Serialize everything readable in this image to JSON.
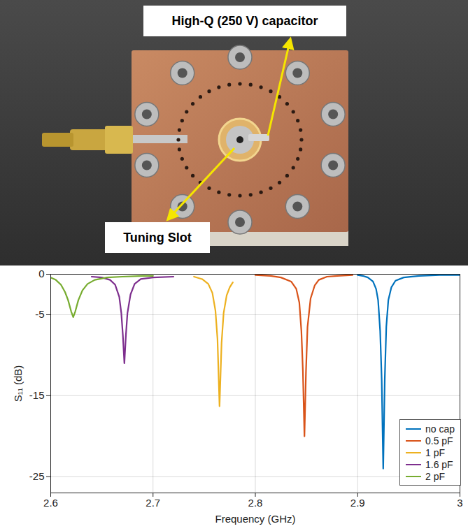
{
  "chart_data": {
    "type": "line",
    "annotations": [
      "High-Q (250 V) capacitor",
      "Tuning Slot"
    ],
    "x_label": "Frequency (GHz)",
    "y_label": "S₁₁ (dB)",
    "xlim": [
      2.6,
      3.0
    ],
    "xticks": [
      2.6,
      2.7,
      2.8,
      2.9,
      3
    ],
    "ylim": [
      -27,
      0
    ],
    "yticks": [
      0,
      -5,
      -15,
      -25
    ],
    "grid": true,
    "legend": "bottom-right",
    "series": [
      {
        "name": "no cap",
        "color": "#0072BD",
        "x": [
          2.9,
          2.905,
          2.91,
          2.915,
          2.918,
          2.92,
          2.922,
          2.9235,
          2.925,
          2.9265,
          2.928,
          2.93,
          2.933,
          2.937,
          2.945,
          2.96,
          2.98,
          3.0
        ],
        "values": [
          -0.1,
          -0.2,
          -0.4,
          -0.9,
          -1.8,
          -3.2,
          -7,
          -13,
          -24,
          -13,
          -6.5,
          -3.2,
          -1.6,
          -0.8,
          -0.4,
          -0.2,
          -0.1,
          -0.1
        ]
      },
      {
        "name": "0.5 pF",
        "color": "#D95319",
        "x": [
          2.8,
          2.815,
          2.825,
          2.835,
          2.84,
          2.843,
          2.845,
          2.8465,
          2.848,
          2.8495,
          2.851,
          2.854,
          2.858,
          2.862,
          2.87,
          2.88,
          2.895
        ],
        "values": [
          -0.1,
          -0.2,
          -0.4,
          -0.9,
          -1.8,
          -3.5,
          -7,
          -12,
          -20,
          -12,
          -6.5,
          -3,
          -1.4,
          -0.7,
          -0.3,
          -0.2,
          -0.1
        ]
      },
      {
        "name": "1 pF",
        "color": "#EDB120",
        "x": [
          2.74,
          2.748,
          2.754,
          2.758,
          2.761,
          2.763,
          2.765,
          2.767,
          2.769,
          2.772,
          2.775,
          2.778
        ],
        "values": [
          -0.3,
          -0.6,
          -1.2,
          -2.3,
          -4.5,
          -8,
          -16.3,
          -8.5,
          -4.8,
          -2.6,
          -1.6,
          -1
        ]
      },
      {
        "name": "1.6 pF",
        "color": "#7E2F8E",
        "x": [
          2.64,
          2.65,
          2.658,
          2.663,
          2.667,
          2.669,
          2.6705,
          2.672,
          2.6735,
          2.675,
          2.678,
          2.682,
          2.688,
          2.7,
          2.72
        ],
        "values": [
          -0.3,
          -0.4,
          -0.7,
          -1.3,
          -2.8,
          -4.8,
          -7.5,
          -11,
          -7.5,
          -4.8,
          -2.5,
          -1.2,
          -0.6,
          -0.4,
          -0.3
        ]
      },
      {
        "name": "2 pF",
        "color": "#77AC30",
        "x": [
          2.6,
          2.605,
          2.61,
          2.614,
          2.617,
          2.62,
          2.622,
          2.624,
          2.627,
          2.631,
          2.636,
          2.643,
          2.655,
          2.67,
          2.69,
          2.7
        ],
        "values": [
          -0.4,
          -0.7,
          -1.3,
          -2.2,
          -3.2,
          -4.6,
          -5.3,
          -4.6,
          -3.2,
          -2,
          -1.2,
          -0.7,
          -0.4,
          -0.3,
          -0.2,
          -0.2
        ]
      }
    ]
  }
}
